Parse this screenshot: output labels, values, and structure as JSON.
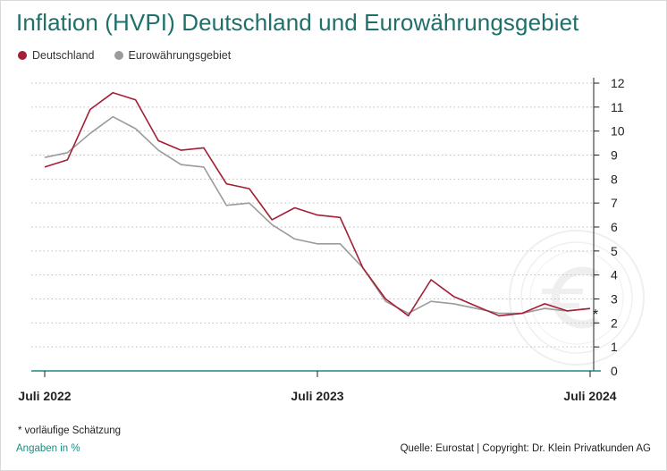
{
  "title": "Inflation (HVPI) Deutschland und Eurowährungsgebiet",
  "footnote": "* vorläufige Schätzung",
  "units_note": "Angaben in %",
  "source": "Quelle: Eurostat | Copyright: Dr. Klein Privatkunden AG",
  "watermark_icon": "euro-coin-icon",
  "colors": {
    "title": "#1f6f6a",
    "deutschland": "#a41e34",
    "eurozone": "#9b9b9b",
    "axis": "#1f8a80",
    "grid": "#bdbdbd"
  },
  "chart_data": {
    "type": "line",
    "title": "Inflation (HVPI) Deutschland und Eurowährungsgebiet",
    "xlabel": "",
    "ylabel": "",
    "x": [
      "2022-07",
      "2022-08",
      "2022-09",
      "2022-10",
      "2022-11",
      "2022-12",
      "2023-01",
      "2023-02",
      "2023-03",
      "2023-04",
      "2023-05",
      "2023-06",
      "2023-07",
      "2023-08",
      "2023-09",
      "2023-10",
      "2023-11",
      "2023-12",
      "2024-01",
      "2024-02",
      "2024-03",
      "2024-04",
      "2024-05",
      "2024-06",
      "2024-07"
    ],
    "x_tick_labels": [
      {
        "x": "2022-07",
        "label": "Juli 2022"
      },
      {
        "x": "2023-07",
        "label": "Juli 2023"
      },
      {
        "x": "2024-07",
        "label": "Juli 2024"
      }
    ],
    "ylim": [
      0,
      12
    ],
    "y_ticks": [
      0,
      1,
      2,
      3,
      4,
      5,
      6,
      7,
      8,
      9,
      10,
      11,
      12
    ],
    "y_axis_side": "right",
    "grid": "horizontal-dotted",
    "legend_position": "top-left",
    "annotation": {
      "x": "2024-07",
      "label": "*"
    },
    "series": [
      {
        "name": "Deutschland",
        "color": "#a41e34",
        "values": [
          8.5,
          8.8,
          10.9,
          11.6,
          11.3,
          9.6,
          9.2,
          9.3,
          7.8,
          7.6,
          6.3,
          6.8,
          6.5,
          6.4,
          4.3,
          3.0,
          2.3,
          3.8,
          3.1,
          2.7,
          2.3,
          2.4,
          2.8,
          2.5,
          2.6
        ]
      },
      {
        "name": "Eurowährungsgebiet",
        "color": "#9b9b9b",
        "values": [
          8.9,
          9.1,
          9.9,
          10.6,
          10.1,
          9.2,
          8.6,
          8.5,
          6.9,
          7.0,
          6.1,
          5.5,
          5.3,
          5.3,
          4.3,
          2.9,
          2.4,
          2.9,
          2.8,
          2.6,
          2.4,
          2.4,
          2.6,
          2.5,
          2.6
        ]
      }
    ]
  }
}
